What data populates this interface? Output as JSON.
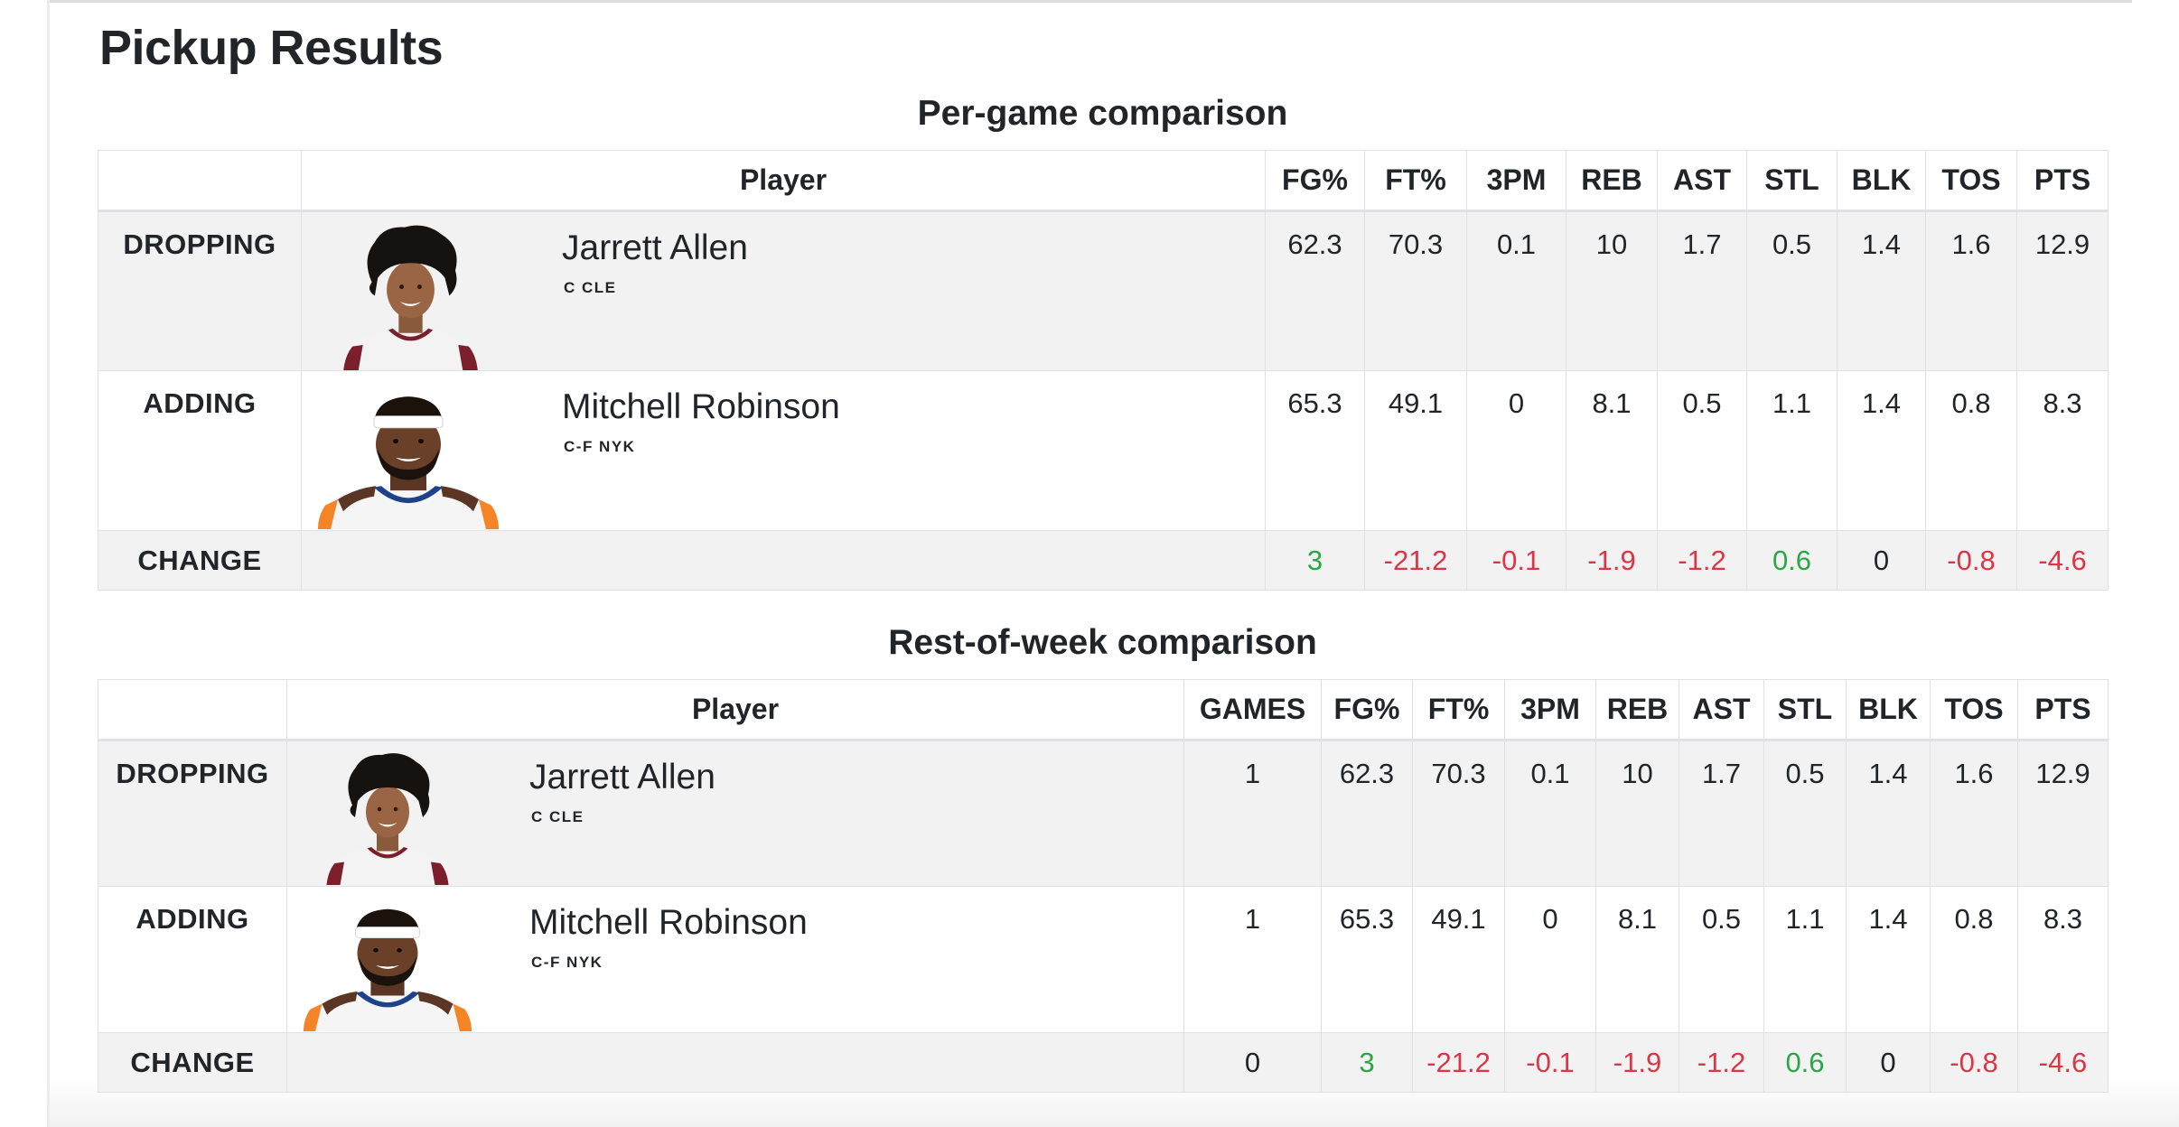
{
  "page": {
    "title": "Pickup Results"
  },
  "per_game": {
    "title": "Per-game comparison",
    "columns": {
      "player": "Player",
      "fg": "FG%",
      "ft": "FT%",
      "tpm": "3PM",
      "reb": "REB",
      "ast": "AST",
      "stl": "STL",
      "blk": "BLK",
      "tos": "TOS",
      "pts": "PTS"
    },
    "dropping": {
      "label": "DROPPING",
      "name": "Jarrett Allen",
      "meta": "C CLE",
      "fg": "62.3",
      "ft": "70.3",
      "tpm": "0.1",
      "reb": "10",
      "ast": "1.7",
      "stl": "0.5",
      "blk": "1.4",
      "tos": "1.6",
      "pts": "12.9"
    },
    "adding": {
      "label": "ADDING",
      "name": "Mitchell Robinson",
      "meta": "C-F NYK",
      "fg": "65.3",
      "ft": "49.1",
      "tpm": "0",
      "reb": "8.1",
      "ast": "0.5",
      "stl": "1.1",
      "blk": "1.4",
      "tos": "0.8",
      "pts": "8.3"
    },
    "change": {
      "label": "CHANGE",
      "fg": "3",
      "ft": "-21.2",
      "tpm": "-0.1",
      "reb": "-1.9",
      "ast": "-1.2",
      "stl": "0.6",
      "blk": "0",
      "tos": "-0.8",
      "pts": "-4.6"
    }
  },
  "rest_of_week": {
    "title": "Rest-of-week comparison",
    "columns": {
      "player": "Player",
      "games": "GAMES",
      "fg": "FG%",
      "ft": "FT%",
      "tpm": "3PM",
      "reb": "REB",
      "ast": "AST",
      "stl": "STL",
      "blk": "BLK",
      "tos": "TOS",
      "pts": "PTS"
    },
    "dropping": {
      "label": "DROPPING",
      "name": "Jarrett Allen",
      "meta": "C CLE",
      "games": "1",
      "fg": "62.3",
      "ft": "70.3",
      "tpm": "0.1",
      "reb": "10",
      "ast": "1.7",
      "stl": "0.5",
      "blk": "1.4",
      "tos": "1.6",
      "pts": "12.9"
    },
    "adding": {
      "label": "ADDING",
      "name": "Mitchell Robinson",
      "meta": "C-F NYK",
      "games": "1",
      "fg": "65.3",
      "ft": "49.1",
      "tpm": "0",
      "reb": "8.1",
      "ast": "0.5",
      "stl": "1.1",
      "blk": "1.4",
      "tos": "0.8",
      "pts": "8.3"
    },
    "change": {
      "label": "CHANGE",
      "games": "0",
      "fg": "3",
      "ft": "-21.2",
      "tpm": "-0.1",
      "reb": "-1.9",
      "ast": "-1.2",
      "stl": "0.6",
      "blk": "0",
      "tos": "-0.8",
      "pts": "-4.6"
    }
  },
  "colors": {
    "positive": "#28a745",
    "negative": "#dc3545",
    "neutral": "#212529",
    "row_gray": "#f2f2f2",
    "border": "#dee2e6"
  },
  "images": {
    "allen": "headshot-jarrett-allen-cavaliers-jersey",
    "robinson": "headshot-mitchell-robinson-knicks-jersey-headband"
  }
}
